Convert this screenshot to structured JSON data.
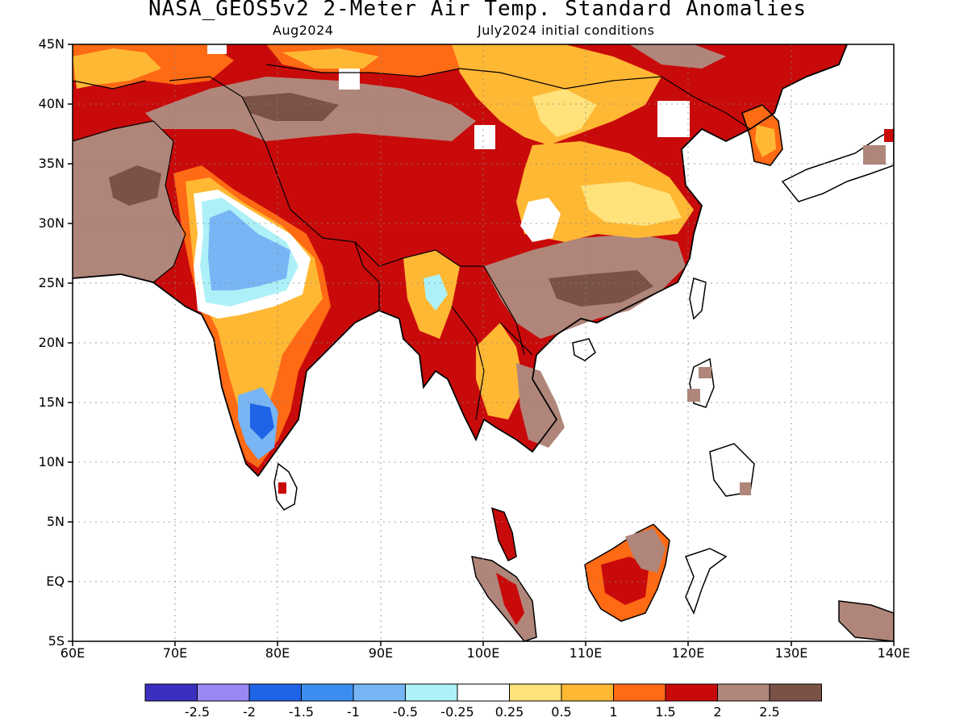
{
  "title": "NASA_GEOS5v2 2-Meter Air Temp. Standard Anomalies",
  "subtitle_left": "Aug2024",
  "subtitle_right": "July2024 initial conditions",
  "lat_labels": [
    "45N",
    "40N",
    "35N",
    "30N",
    "25N",
    "20N",
    "15N",
    "10N",
    "5N",
    "EQ",
    "5S"
  ],
  "lon_labels": [
    "60E",
    "70E",
    "80E",
    "90E",
    "100E",
    "110E",
    "120E",
    "130E",
    "140E"
  ],
  "colorbar": {
    "colors": [
      "#3a2fbf",
      "#9b88f5",
      "#1f64e6",
      "#3b8ef0",
      "#77b5f5",
      "#aef0f7",
      "#ffffff",
      "#ffe27a",
      "#ffb833",
      "#ff6a14",
      "#c90a0a",
      "#b0867a",
      "#7a5246"
    ],
    "tick_labels": [
      "-2.5",
      "-2",
      "-1.5",
      "-1",
      "-0.5",
      "-0.25",
      "0.25",
      "0.5",
      "1",
      "1.5",
      "2",
      "2.5"
    ]
  },
  "map": {
    "extent": {
      "lon": [
        60,
        140
      ],
      "lat": [
        -5,
        45
      ]
    },
    "colors": {
      "brown": "#b0867a",
      "darkbrown": "#7a5246",
      "red": "#c90a0a",
      "orangered": "#ff6a14",
      "orange": "#ffb833",
      "yellow": "#ffe27a",
      "white": "#ffffff",
      "lightblue": "#aef0f7",
      "blue": "#77b5f5",
      "midblue": "#3b8ef0",
      "deepblue": "#1f64e6",
      "coast": "#000000"
    }
  }
}
